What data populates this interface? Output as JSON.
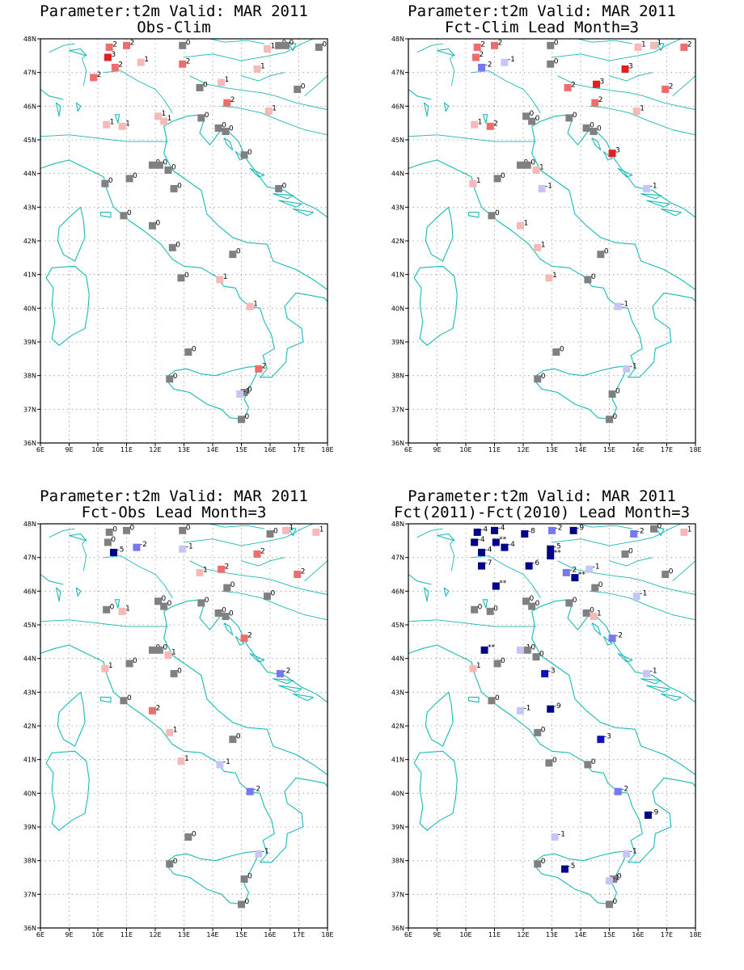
{
  "colors": {
    "coast": "#1ab8b8",
    "grid": "#999999",
    "neutral": "#808080",
    "pos1": "#f7b8b8",
    "pos2": "#ef6c6c",
    "pos3": "#e02020",
    "neg1": "#c6c6f6",
    "neg2": "#7777f0",
    "neg3": "#1010c0",
    "neg4": "#00008b"
  },
  "axes": {
    "lon_ticks": [
      "6E",
      "9E",
      "10E",
      "11E",
      "12E",
      "13E",
      "14E",
      "15E",
      "16E",
      "17E",
      "18E"
    ],
    "lat_ticks": [
      "36N",
      "37N",
      "38N",
      "39N",
      "40N",
      "41N",
      "42N",
      "43N",
      "44N",
      "45N",
      "46N",
      "47N",
      "48N"
    ]
  },
  "panels": [
    {
      "title1": "Parameter:t2m Valid: MAR 2011",
      "title2": "Obs-Clim",
      "stations": [
        {
          "lon": 10.4,
          "lat": 47.75,
          "v": "2"
        },
        {
          "lon": 11.0,
          "lat": 47.8,
          "v": "2"
        },
        {
          "lon": 12.95,
          "lat": 47.8,
          "v": "0"
        },
        {
          "lon": 16.3,
          "lat": 47.8,
          "v": "0"
        },
        {
          "lon": 16.55,
          "lat": 47.8,
          "v": "0"
        },
        {
          "lon": 17.7,
          "lat": 47.75,
          "v": "0"
        },
        {
          "lon": 10.35,
          "lat": 47.45,
          "v": "3"
        },
        {
          "lon": 11.5,
          "lat": 47.3,
          "v": "1"
        },
        {
          "lon": 10.6,
          "lat": 47.15,
          "v": "2"
        },
        {
          "lon": 12.95,
          "lat": 47.25,
          "v": "2"
        },
        {
          "lon": 15.9,
          "lat": 47.7,
          "v": "1"
        },
        {
          "lon": 15.55,
          "lat": 47.1,
          "v": "1"
        },
        {
          "lon": 9.85,
          "lat": 46.85,
          "v": "2"
        },
        {
          "lon": 14.3,
          "lat": 46.7,
          "v": "1"
        },
        {
          "lon": 13.55,
          "lat": 46.55,
          "v": "0"
        },
        {
          "lon": 16.95,
          "lat": 46.5,
          "v": "0"
        },
        {
          "lon": 14.5,
          "lat": 46.1,
          "v": "2"
        },
        {
          "lon": 12.1,
          "lat": 45.7,
          "v": "1"
        },
        {
          "lon": 12.3,
          "lat": 45.55,
          "v": "1"
        },
        {
          "lon": 13.6,
          "lat": 45.65,
          "v": "0"
        },
        {
          "lon": 15.95,
          "lat": 45.85,
          "v": "1"
        },
        {
          "lon": 10.3,
          "lat": 45.45,
          "v": "1"
        },
        {
          "lon": 10.85,
          "lat": 45.4,
          "v": "1"
        },
        {
          "lon": 14.2,
          "lat": 45.35,
          "v": "0"
        },
        {
          "lon": 14.45,
          "lat": 45.25,
          "v": "0"
        },
        {
          "lon": 15.1,
          "lat": 44.55,
          "v": "0"
        },
        {
          "lon": 11.9,
          "lat": 44.25,
          "v": "0"
        },
        {
          "lon": 12.15,
          "lat": 44.25,
          "v": "0"
        },
        {
          "lon": 12.45,
          "lat": 44.1,
          "v": "0"
        },
        {
          "lon": 11.1,
          "lat": 43.85,
          "v": "0"
        },
        {
          "lon": 10.25,
          "lat": 43.7,
          "v": "0"
        },
        {
          "lon": 12.65,
          "lat": 43.55,
          "v": "0"
        },
        {
          "lon": 16.3,
          "lat": 43.55,
          "v": "0"
        },
        {
          "lon": 10.9,
          "lat": 42.75,
          "v": "0"
        },
        {
          "lon": 11.9,
          "lat": 42.45,
          "v": "0"
        },
        {
          "lon": 12.6,
          "lat": 41.8,
          "v": "0"
        },
        {
          "lon": 14.7,
          "lat": 41.6,
          "v": "0"
        },
        {
          "lon": 12.9,
          "lat": 40.9,
          "v": "0"
        },
        {
          "lon": 14.25,
          "lat": 40.85,
          "v": "1"
        },
        {
          "lon": 15.3,
          "lat": 40.05,
          "v": "1"
        },
        {
          "lon": 13.15,
          "lat": 38.7,
          "v": "0"
        },
        {
          "lon": 15.6,
          "lat": 38.2,
          "v": "2"
        },
        {
          "lon": 12.5,
          "lat": 37.9,
          "v": "0"
        },
        {
          "lon": 15.1,
          "lat": 37.5,
          "v": "0"
        },
        {
          "lon": 14.95,
          "lat": 37.45,
          "v": "-1"
        },
        {
          "lon": 15.0,
          "lat": 36.7,
          "v": "0"
        }
      ]
    },
    {
      "title1": "Parameter:t2m Valid: MAR 2011",
      "title2": "Fct-Clim Lead Month=3",
      "stations": [
        {
          "lon": 10.4,
          "lat": 47.75,
          "v": "2"
        },
        {
          "lon": 11.0,
          "lat": 47.8,
          "v": "2"
        },
        {
          "lon": 12.95,
          "lat": 47.8,
          "v": "0"
        },
        {
          "lon": 16.0,
          "lat": 47.75,
          "v": "1"
        },
        {
          "lon": 16.55,
          "lat": 47.8,
          "v": "1"
        },
        {
          "lon": 17.6,
          "lat": 47.75,
          "v": "2"
        },
        {
          "lon": 10.35,
          "lat": 47.45,
          "v": "2"
        },
        {
          "lon": 11.35,
          "lat": 47.3,
          "v": "-1"
        },
        {
          "lon": 10.55,
          "lat": 47.15,
          "v": "-2"
        },
        {
          "lon": 12.95,
          "lat": 47.25,
          "v": "0"
        },
        {
          "lon": 15.55,
          "lat": 47.1,
          "v": "3"
        },
        {
          "lon": 14.55,
          "lat": 46.65,
          "v": "3"
        },
        {
          "lon": 13.55,
          "lat": 46.55,
          "v": "2"
        },
        {
          "lon": 16.95,
          "lat": 46.5,
          "v": "2"
        },
        {
          "lon": 14.5,
          "lat": 46.1,
          "v": "2"
        },
        {
          "lon": 12.1,
          "lat": 45.7,
          "v": "0"
        },
        {
          "lon": 12.3,
          "lat": 45.55,
          "v": "0"
        },
        {
          "lon": 13.6,
          "lat": 45.65,
          "v": "0"
        },
        {
          "lon": 15.95,
          "lat": 45.85,
          "v": "1"
        },
        {
          "lon": 10.3,
          "lat": 45.45,
          "v": "1"
        },
        {
          "lon": 10.85,
          "lat": 45.4,
          "v": "2"
        },
        {
          "lon": 14.2,
          "lat": 45.35,
          "v": "0"
        },
        {
          "lon": 14.45,
          "lat": 45.25,
          "v": "0"
        },
        {
          "lon": 15.1,
          "lat": 44.6,
          "v": "3"
        },
        {
          "lon": 11.9,
          "lat": 44.25,
          "v": "0"
        },
        {
          "lon": 12.15,
          "lat": 44.25,
          "v": "0"
        },
        {
          "lon": 12.45,
          "lat": 44.1,
          "v": "1"
        },
        {
          "lon": 11.1,
          "lat": 43.85,
          "v": "0"
        },
        {
          "lon": 10.25,
          "lat": 43.7,
          "v": "1"
        },
        {
          "lon": 12.65,
          "lat": 43.55,
          "v": "-1"
        },
        {
          "lon": 16.3,
          "lat": 43.55,
          "v": "-1"
        },
        {
          "lon": 10.9,
          "lat": 42.75,
          "v": "0"
        },
        {
          "lon": 11.9,
          "lat": 42.45,
          "v": "1"
        },
        {
          "lon": 12.5,
          "lat": 41.8,
          "v": "1"
        },
        {
          "lon": 14.7,
          "lat": 41.6,
          "v": "0"
        },
        {
          "lon": 12.9,
          "lat": 40.9,
          "v": "1"
        },
        {
          "lon": 14.25,
          "lat": 40.85,
          "v": "0"
        },
        {
          "lon": 15.3,
          "lat": 40.05,
          "v": "-1"
        },
        {
          "lon": 13.15,
          "lat": 38.7,
          "v": "0"
        },
        {
          "lon": 15.6,
          "lat": 38.2,
          "v": "-1"
        },
        {
          "lon": 12.5,
          "lat": 37.9,
          "v": "0"
        },
        {
          "lon": 15.1,
          "lat": 37.45,
          "v": "0"
        },
        {
          "lon": 15.0,
          "lat": 36.7,
          "v": "0"
        }
      ]
    },
    {
      "title1": "Parameter:t2m Valid: MAR 2011",
      "title2": "Fct-Obs Lead Month=3",
      "stations": [
        {
          "lon": 10.4,
          "lat": 47.75,
          "v": "0"
        },
        {
          "lon": 11.0,
          "lat": 47.8,
          "v": "0"
        },
        {
          "lon": 12.95,
          "lat": 47.8,
          "v": "0"
        },
        {
          "lon": 16.0,
          "lat": 47.7,
          "v": "0"
        },
        {
          "lon": 16.55,
          "lat": 47.8,
          "v": "1"
        },
        {
          "lon": 17.6,
          "lat": 47.75,
          "v": "1"
        },
        {
          "lon": 10.35,
          "lat": 47.45,
          "v": "0"
        },
        {
          "lon": 11.35,
          "lat": 47.3,
          "v": "-2"
        },
        {
          "lon": 10.55,
          "lat": 47.15,
          "v": "-5"
        },
        {
          "lon": 12.95,
          "lat": 47.25,
          "v": "-1"
        },
        {
          "lon": 15.55,
          "lat": 47.1,
          "v": "2"
        },
        {
          "lon": 14.3,
          "lat": 46.65,
          "v": "2"
        },
        {
          "lon": 13.55,
          "lat": 46.55,
          "v": "1"
        },
        {
          "lon": 16.95,
          "lat": 46.5,
          "v": "2"
        },
        {
          "lon": 14.5,
          "lat": 46.1,
          "v": "0"
        },
        {
          "lon": 12.1,
          "lat": 45.7,
          "v": "0"
        },
        {
          "lon": 12.3,
          "lat": 45.55,
          "v": "0"
        },
        {
          "lon": 13.6,
          "lat": 45.65,
          "v": "0"
        },
        {
          "lon": 15.9,
          "lat": 45.85,
          "v": "0"
        },
        {
          "lon": 10.3,
          "lat": 45.45,
          "v": "0"
        },
        {
          "lon": 10.85,
          "lat": 45.4,
          "v": "1"
        },
        {
          "lon": 14.2,
          "lat": 45.35,
          "v": "0"
        },
        {
          "lon": 14.45,
          "lat": 45.25,
          "v": "0"
        },
        {
          "lon": 15.1,
          "lat": 44.6,
          "v": "2"
        },
        {
          "lon": 11.9,
          "lat": 44.25,
          "v": "0"
        },
        {
          "lon": 12.15,
          "lat": 44.25,
          "v": "0"
        },
        {
          "lon": 12.45,
          "lat": 44.1,
          "v": "1"
        },
        {
          "lon": 11.1,
          "lat": 43.85,
          "v": "0"
        },
        {
          "lon": 10.25,
          "lat": 43.7,
          "v": "1"
        },
        {
          "lon": 12.65,
          "lat": 43.55,
          "v": "0"
        },
        {
          "lon": 16.35,
          "lat": 43.55,
          "v": "-2"
        },
        {
          "lon": 10.9,
          "lat": 42.75,
          "v": "0"
        },
        {
          "lon": 11.9,
          "lat": 42.45,
          "v": "2"
        },
        {
          "lon": 12.5,
          "lat": 41.8,
          "v": "1"
        },
        {
          "lon": 14.7,
          "lat": 41.6,
          "v": "0"
        },
        {
          "lon": 12.9,
          "lat": 40.95,
          "v": "1"
        },
        {
          "lon": 14.25,
          "lat": 40.85,
          "v": "-1"
        },
        {
          "lon": 15.3,
          "lat": 40.05,
          "v": "-2"
        },
        {
          "lon": 13.15,
          "lat": 38.7,
          "v": "0"
        },
        {
          "lon": 15.6,
          "lat": 38.2,
          "v": "-1"
        },
        {
          "lon": 12.5,
          "lat": 37.9,
          "v": "0"
        },
        {
          "lon": 15.1,
          "lat": 37.45,
          "v": "0"
        },
        {
          "lon": 15.0,
          "lat": 36.7,
          "v": "0"
        }
      ]
    },
    {
      "title1": "Parameter:t2m Valid: MAR 2011",
      "title2": "Fct(2011)-Fct(2010) Lead Month=3",
      "stations": [
        {
          "lon": 10.4,
          "lat": 47.75,
          "v": "-4"
        },
        {
          "lon": 11.0,
          "lat": 47.8,
          "v": "-4"
        },
        {
          "lon": 12.05,
          "lat": 47.7,
          "v": "-8"
        },
        {
          "lon": 13.0,
          "lat": 47.8,
          "v": "-2"
        },
        {
          "lon": 13.75,
          "lat": 47.8,
          "v": "-9"
        },
        {
          "lon": 15.85,
          "lat": 47.7,
          "v": "-2"
        },
        {
          "lon": 16.55,
          "lat": 47.85,
          "v": "0"
        },
        {
          "lon": 17.6,
          "lat": 47.75,
          "v": "1"
        },
        {
          "lon": 10.3,
          "lat": 47.45,
          "v": "-4"
        },
        {
          "lon": 11.05,
          "lat": 47.45,
          "v": "**"
        },
        {
          "lon": 11.35,
          "lat": 47.3,
          "v": "-4"
        },
        {
          "lon": 10.55,
          "lat": 47.15,
          "v": "-4"
        },
        {
          "lon": 12.95,
          "lat": 47.25,
          "v": "-5"
        },
        {
          "lon": 12.95,
          "lat": 47.05,
          "v": "**"
        },
        {
          "lon": 15.55,
          "lat": 47.1,
          "v": "0"
        },
        {
          "lon": 10.55,
          "lat": 46.75,
          "v": "-7"
        },
        {
          "lon": 12.2,
          "lat": 46.75,
          "v": "-6"
        },
        {
          "lon": 13.5,
          "lat": 46.55,
          "v": "-2"
        },
        {
          "lon": 13.8,
          "lat": 46.4,
          "v": "**"
        },
        {
          "lon": 14.3,
          "lat": 46.65,
          "v": "-1"
        },
        {
          "lon": 16.95,
          "lat": 46.5,
          "v": "0"
        },
        {
          "lon": 14.5,
          "lat": 46.1,
          "v": "0"
        },
        {
          "lon": 11.05,
          "lat": 46.15,
          "v": "**"
        },
        {
          "lon": 12.1,
          "lat": 45.7,
          "v": "0"
        },
        {
          "lon": 12.3,
          "lat": 45.55,
          "v": "0"
        },
        {
          "lon": 13.6,
          "lat": 45.65,
          "v": "0"
        },
        {
          "lon": 15.95,
          "lat": 45.85,
          "v": "-1"
        },
        {
          "lon": 10.3,
          "lat": 45.45,
          "v": "0"
        },
        {
          "lon": 10.85,
          "lat": 45.4,
          "v": "0"
        },
        {
          "lon": 14.2,
          "lat": 45.35,
          "v": "0"
        },
        {
          "lon": 14.45,
          "lat": 45.25,
          "v": "1"
        },
        {
          "lon": 15.1,
          "lat": 44.6,
          "v": "-2"
        },
        {
          "lon": 10.65,
          "lat": 44.25,
          "v": "**"
        },
        {
          "lon": 11.9,
          "lat": 44.25,
          "v": "-1"
        },
        {
          "lon": 12.15,
          "lat": 44.25,
          "v": "0"
        },
        {
          "lon": 12.45,
          "lat": 44.05,
          "v": "0"
        },
        {
          "lon": 11.1,
          "lat": 43.85,
          "v": "0"
        },
        {
          "lon": 10.25,
          "lat": 43.7,
          "v": "1"
        },
        {
          "lon": 12.75,
          "lat": 43.55,
          "v": "-3"
        },
        {
          "lon": 16.3,
          "lat": 43.55,
          "v": "-1"
        },
        {
          "lon": 10.9,
          "lat": 42.75,
          "v": "0"
        },
        {
          "lon": 11.9,
          "lat": 42.45,
          "v": "-1"
        },
        {
          "lon": 12.95,
          "lat": 42.5,
          "v": "-9"
        },
        {
          "lon": 12.5,
          "lat": 41.8,
          "v": "0"
        },
        {
          "lon": 14.7,
          "lat": 41.6,
          "v": "-3"
        },
        {
          "lon": 12.9,
          "lat": 40.9,
          "v": "0"
        },
        {
          "lon": 14.25,
          "lat": 40.85,
          "v": "0"
        },
        {
          "lon": 15.3,
          "lat": 40.05,
          "v": "-2"
        },
        {
          "lon": 16.35,
          "lat": 39.35,
          "v": "-9"
        },
        {
          "lon": 13.1,
          "lat": 38.7,
          "v": "-1"
        },
        {
          "lon": 15.6,
          "lat": 38.2,
          "v": "-1"
        },
        {
          "lon": 12.5,
          "lat": 37.9,
          "v": "0"
        },
        {
          "lon": 13.45,
          "lat": 37.75,
          "v": "-5"
        },
        {
          "lon": 15.15,
          "lat": 37.45,
          "v": "0"
        },
        {
          "lon": 15.0,
          "lat": 37.4,
          "v": "-1"
        },
        {
          "lon": 15.0,
          "lat": 36.7,
          "v": "0"
        }
      ]
    }
  ]
}
